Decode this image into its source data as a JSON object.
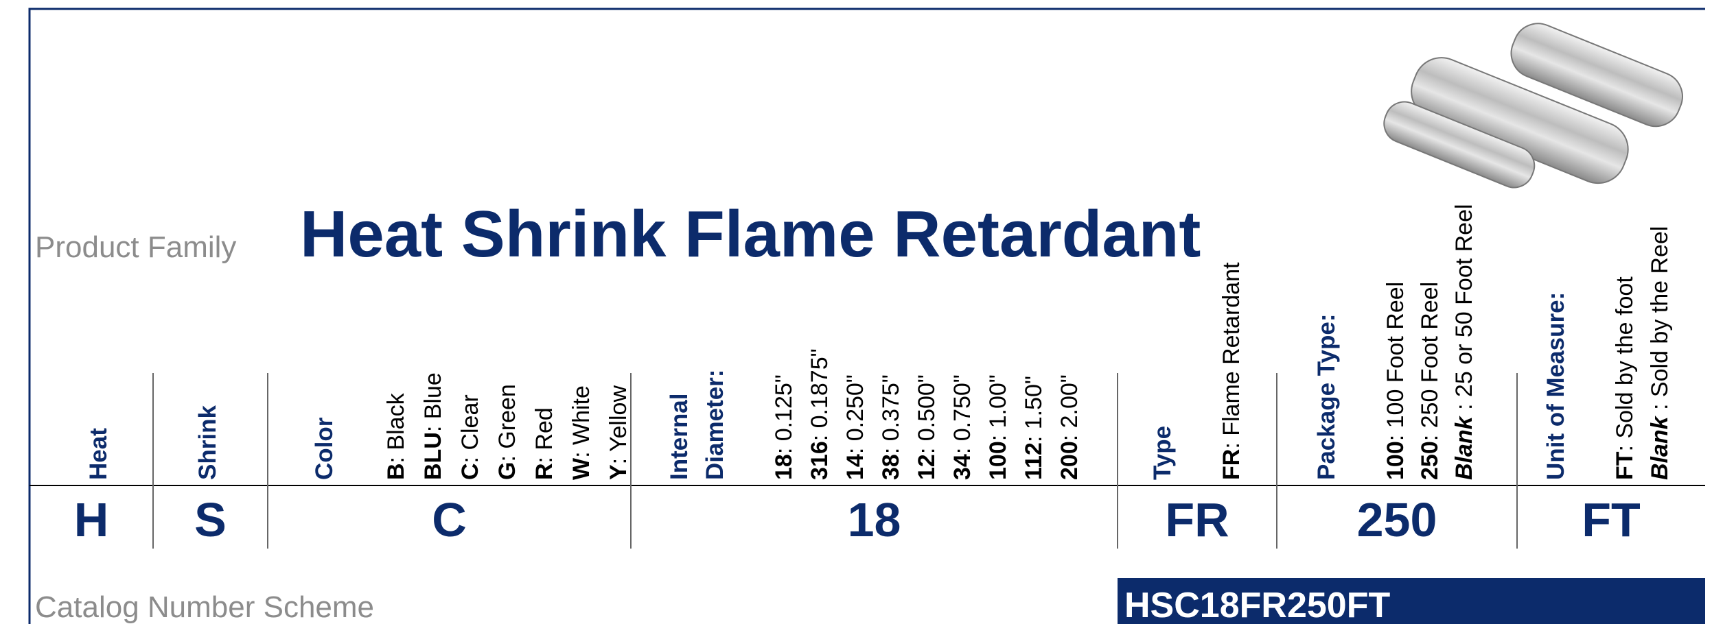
{
  "product_family_label": "Product Family",
  "title": "Heat Shrink Flame Retardant",
  "columns": [
    {
      "heading": [
        "Heat"
      ],
      "options": [],
      "code": "H"
    },
    {
      "heading": [
        "Shrink"
      ],
      "options": [],
      "code": "S"
    },
    {
      "heading": [
        "Color"
      ],
      "options": [
        {
          "code": "B",
          "text": ": Black"
        },
        {
          "code": "BLU",
          "text": ": Blue"
        },
        {
          "code": "C",
          "text": ": Clear"
        },
        {
          "code": "G",
          "text": ": Green"
        },
        {
          "code": "R",
          "text": ": Red"
        },
        {
          "code": "W",
          "text": ": White"
        },
        {
          "code": "Y",
          "text": ": Yellow"
        }
      ],
      "code": "C"
    },
    {
      "heading": [
        "Internal",
        "Diameter:"
      ],
      "options": [
        {
          "code": "18",
          "text": ": 0.125\""
        },
        {
          "code": "316",
          "text": ": 0.1875\""
        },
        {
          "code": "14",
          "text": ": 0.250\""
        },
        {
          "code": "38",
          "text": ": 0.375\""
        },
        {
          "code": "12",
          "text": ": 0.500\""
        },
        {
          "code": "34",
          "text": ": 0.750\""
        },
        {
          "code": "100",
          "text": ": 1.00\""
        },
        {
          "code": "112",
          "text": ": 1.50\""
        },
        {
          "code": "200",
          "text": ": 2.00\""
        }
      ],
      "code": "18"
    },
    {
      "heading": [
        "Type"
      ],
      "options": [
        {
          "code": "FR",
          "text": ": Flame Retardant"
        }
      ],
      "code": "FR"
    },
    {
      "heading": [
        "Package Type:"
      ],
      "options": [
        {
          "code": "100",
          "text": ":  100 Foot Reel"
        },
        {
          "code": "250",
          "text": ": 250 Foot Reel"
        },
        {
          "code": "Blank",
          "italic": true,
          "text": " : 25 or 50 Foot Reel"
        }
      ],
      "code": "250"
    },
    {
      "heading": [
        "Unit of Measure:"
      ],
      "options": [
        {
          "code": "FT",
          "text": ":  Sold by the foot"
        },
        {
          "code": "Blank",
          "italic": true,
          "text": " : Sold by the Reel"
        }
      ],
      "code": "FT"
    }
  ],
  "catalog_label": "Catalog Number Scheme",
  "example": "HSC18FR250FT"
}
